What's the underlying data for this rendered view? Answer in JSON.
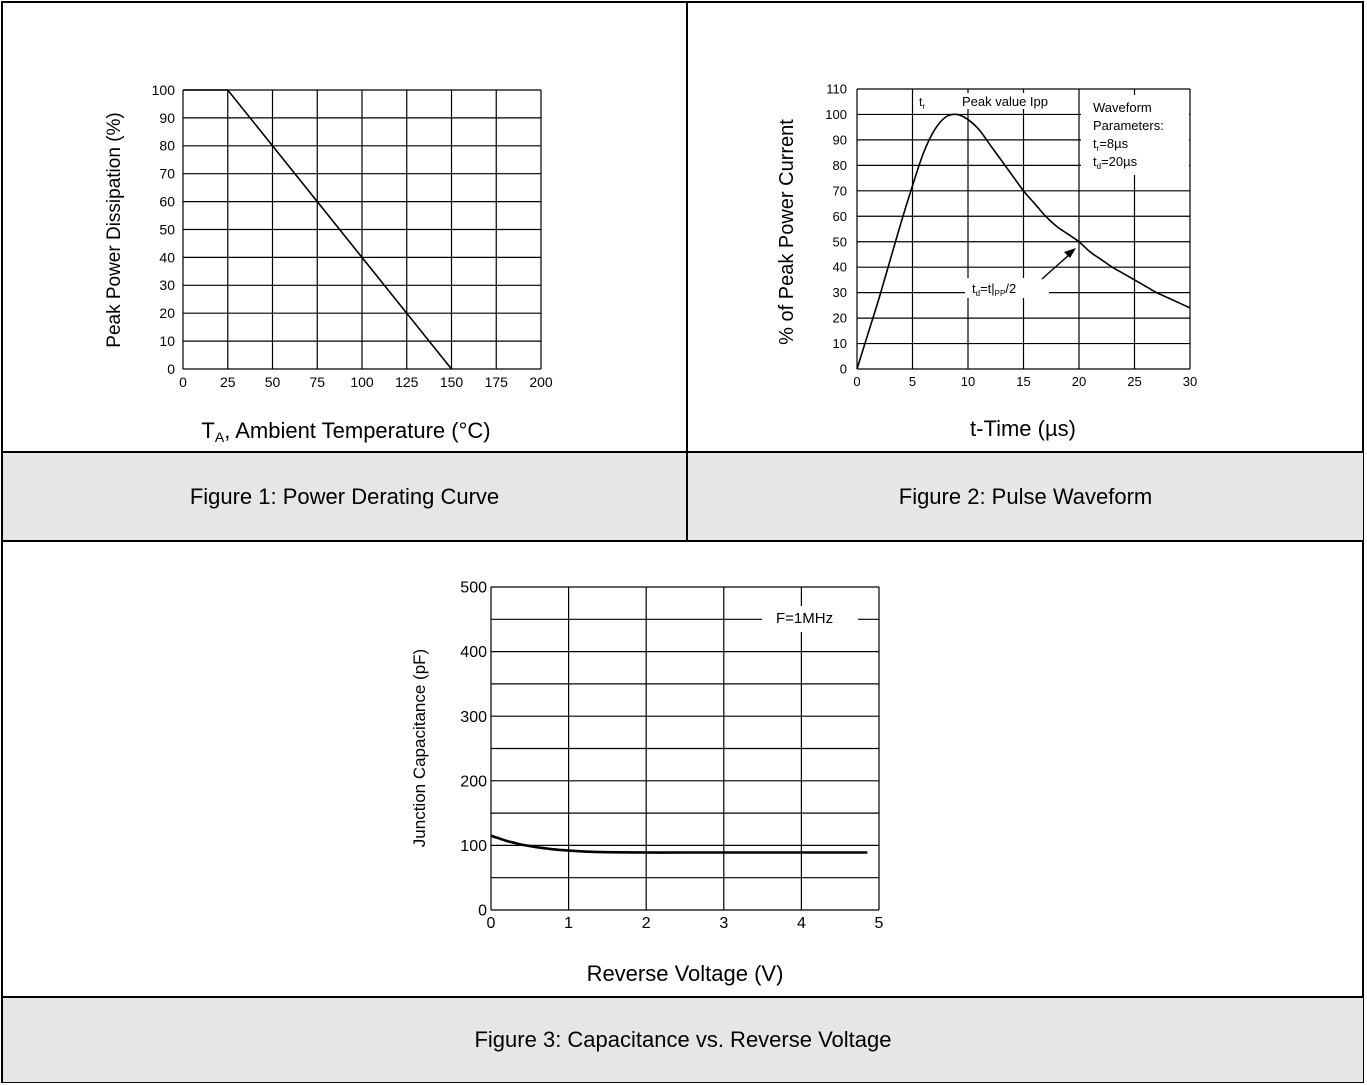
{
  "figures": {
    "fig1": {
      "caption": "Figure 1: Power Derating Curve"
    },
    "fig2": {
      "caption": "Figure 2: Pulse Waveform"
    },
    "fig3": {
      "caption": "Figure 3: Capacitance vs. Reverse Voltage"
    }
  },
  "chart_data": [
    {
      "type": "line",
      "title": "",
      "xlabel_main": "T",
      "xlabel_sub": "A",
      "xlabel_rest": ", Ambient Temperature (°C)",
      "ylabel": "Peak Power Dissipation (%)",
      "xlim": [
        0,
        200
      ],
      "ylim": [
        0,
        100
      ],
      "xticks": [
        0,
        25,
        50,
        75,
        100,
        125,
        150,
        175,
        200
      ],
      "yticks": [
        0,
        10,
        20,
        30,
        40,
        50,
        60,
        70,
        80,
        90,
        100
      ],
      "grid": true,
      "series": [
        {
          "x": [
            0,
            25,
            150
          ],
          "y": [
            100,
            100,
            0
          ]
        }
      ]
    },
    {
      "type": "line",
      "title": "",
      "xlabel": "t-Time (µs)",
      "ylabel": "% of Peak Power Current",
      "xlim": [
        0,
        30
      ],
      "ylim": [
        0,
        110
      ],
      "xticks": [
        0,
        5,
        10,
        15,
        20,
        25,
        30
      ],
      "yticks": [
        0,
        10,
        20,
        30,
        40,
        50,
        60,
        70,
        80,
        90,
        100,
        110
      ],
      "grid": true,
      "series": [
        {
          "x": [
            0,
            1,
            2,
            3,
            4,
            5,
            6,
            7,
            8,
            9,
            10,
            11,
            12,
            13,
            14,
            15,
            16,
            17,
            18,
            19,
            20,
            21,
            22,
            23,
            24,
            25,
            26,
            27,
            28,
            29,
            30
          ],
          "y": [
            0,
            14,
            28,
            43,
            58,
            72,
            85,
            94,
            99,
            100,
            98,
            94,
            88,
            82,
            76,
            70,
            65,
            60,
            56,
            53,
            50,
            46,
            43,
            40,
            37.5,
            35,
            32.5,
            30,
            28,
            26,
            24
          ]
        }
      ],
      "annotations": {
        "tr_main": "t",
        "tr_sub": "r",
        "peak": "Peak value Ipp",
        "params_line1": "Waveform",
        "params_line2": "Parameters:",
        "tr_param_main": "t",
        "tr_param_sub": "r",
        "tr_param_val": "=8µs",
        "td_param_main": "t",
        "td_param_sub": "d",
        "td_param_val": "=20µs",
        "td_label_main": "t",
        "td_label_sub1": "d",
        "td_label_mid": "=t|",
        "td_label_sub2": "PP",
        "td_label_end": "/2"
      }
    },
    {
      "type": "line",
      "title": "",
      "xlabel": "Reverse Voltage (V)",
      "ylabel": "Junction Capacitance (pF)",
      "xlim": [
        0,
        5
      ],
      "ylim": [
        0,
        500
      ],
      "xticks": [
        0,
        1,
        2,
        3,
        4,
        5
      ],
      "yticks": [
        0,
        100,
        200,
        300,
        400,
        500
      ],
      "grid": true,
      "series": [
        {
          "x": [
            0,
            0.1,
            0.2,
            0.3,
            0.4,
            0.5,
            0.6,
            0.8,
            1.0,
            1.2,
            1.5,
            2.0,
            2.5,
            3.0,
            3.5,
            4.0,
            4.5,
            4.85
          ],
          "y": [
            115,
            111,
            107,
            104,
            101,
            99,
            97,
            94,
            92,
            90.5,
            89.5,
            89,
            89,
            89,
            89,
            89,
            89,
            89
          ]
        }
      ],
      "annotations": {
        "freq": "F=1MHz"
      }
    }
  ]
}
